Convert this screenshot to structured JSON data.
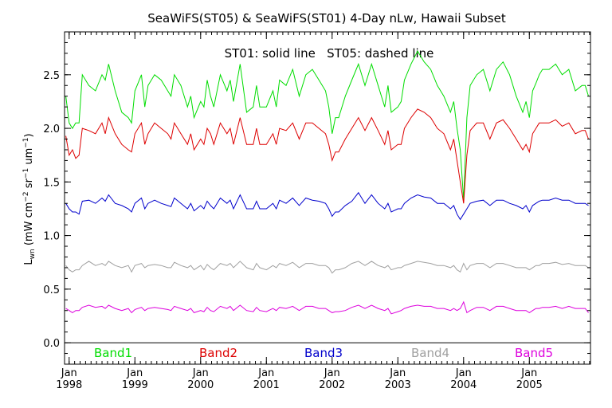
{
  "chart_data": {
    "type": "line",
    "title": "SeaWiFS(ST05) & SeaWiFS(ST01) 4-Day nLw, Hawaii Subset",
    "annotation": "ST01: solid line   ST05: dashed line",
    "ylabel": {
      "main": "L",
      "sub": "wn",
      "units_open": " (mW cm",
      "exp1": "−2",
      "mid": " sr",
      "exp2": "−1",
      "mid2": " um",
      "exp3": "−1",
      "close": ")"
    },
    "ylim": [
      -0.2,
      2.9
    ],
    "xlim": [
      1997.93,
      2005.93
    ],
    "yticks": [
      0.0,
      0.5,
      1.0,
      1.5,
      2.0,
      2.5
    ],
    "ytick_labels": [
      "0.0",
      "0.5",
      "1.0",
      "1.5",
      "2.0",
      "2.5"
    ],
    "xticks": [
      1998,
      1999,
      2000,
      2001,
      2002,
      2003,
      2004,
      2005
    ],
    "xtick_month": "Jan",
    "xtick_years": [
      "1998",
      "1999",
      "2000",
      "2001",
      "2002",
      "2003",
      "2004",
      "2005"
    ],
    "grid": false,
    "zero_line": true,
    "legend_placement": "bottom",
    "colors": {
      "Band1": "#00dd00",
      "Band2": "#dd0000",
      "Band3": "#0000cc",
      "Band4": "#a0a0a0",
      "Band5": "#dd00dd"
    },
    "series": [
      {
        "name": "Band1",
        "x": [
          1997.95,
          1998.0,
          1998.05,
          1998.1,
          1998.15,
          1998.2,
          1998.3,
          1998.4,
          1998.5,
          1998.55,
          1998.6,
          1998.7,
          1998.8,
          1998.9,
          1998.95,
          1999.0,
          1999.1,
          1999.15,
          1999.2,
          1999.3,
          1999.4,
          1999.5,
          1999.55,
          1999.6,
          1999.7,
          1999.8,
          1999.85,
          1999.9,
          2000.0,
          2000.05,
          2000.1,
          2000.15,
          2000.2,
          2000.3,
          2000.4,
          2000.45,
          2000.5,
          2000.6,
          2000.7,
          2000.8,
          2000.85,
          2000.9,
          2001.0,
          2001.1,
          2001.15,
          2001.2,
          2001.3,
          2001.4,
          2001.5,
          2001.6,
          2001.7,
          2001.8,
          2001.9,
          2001.95,
          2002.0,
          2002.05,
          2002.1,
          2002.2,
          2002.3,
          2002.4,
          2002.5,
          2002.6,
          2002.7,
          2002.8,
          2002.85,
          2002.9,
          2003.0,
          2003.05,
          2003.1,
          2003.2,
          2003.3,
          2003.4,
          2003.5,
          2003.6,
          2003.7,
          2003.8,
          2003.85,
          2003.9,
          2003.95,
          2004.0,
          2004.05,
          2004.1,
          2004.2,
          2004.3,
          2004.4,
          2004.5,
          2004.6,
          2004.7,
          2004.8,
          2004.9,
          2004.95,
          2005.0,
          2005.05,
          2005.1,
          2005.15,
          2005.2,
          2005.3,
          2005.4,
          2005.5,
          2005.6,
          2005.7,
          2005.8,
          2005.85,
          2005.9
        ],
        "values": [
          2.3,
          2.05,
          2.0,
          2.05,
          2.05,
          2.5,
          2.4,
          2.35,
          2.5,
          2.45,
          2.6,
          2.35,
          2.15,
          2.1,
          2.05,
          2.35,
          2.5,
          2.2,
          2.4,
          2.5,
          2.45,
          2.35,
          2.3,
          2.5,
          2.4,
          2.2,
          2.3,
          2.1,
          2.25,
          2.2,
          2.45,
          2.3,
          2.2,
          2.5,
          2.35,
          2.45,
          2.25,
          2.6,
          2.15,
          2.2,
          2.4,
          2.2,
          2.2,
          2.35,
          2.2,
          2.45,
          2.4,
          2.55,
          2.3,
          2.5,
          2.55,
          2.45,
          2.35,
          2.2,
          1.95,
          2.1,
          2.1,
          2.3,
          2.45,
          2.6,
          2.4,
          2.6,
          2.4,
          2.2,
          2.4,
          2.15,
          2.2,
          2.25,
          2.45,
          2.6,
          2.72,
          2.62,
          2.55,
          2.4,
          2.3,
          2.15,
          2.25,
          2.0,
          1.8,
          1.33,
          2.1,
          2.4,
          2.5,
          2.55,
          2.35,
          2.55,
          2.62,
          2.5,
          2.3,
          2.15,
          2.25,
          2.1,
          2.35,
          2.42,
          2.5,
          2.55,
          2.55,
          2.6,
          2.5,
          2.55,
          2.35,
          2.4,
          2.4,
          2.3
        ]
      },
      {
        "name": "Band2",
        "x": [
          1997.95,
          1998.0,
          1998.05,
          1998.1,
          1998.15,
          1998.2,
          1998.3,
          1998.4,
          1998.5,
          1998.55,
          1998.6,
          1998.7,
          1998.8,
          1998.9,
          1998.95,
          1999.0,
          1999.1,
          1999.15,
          1999.2,
          1999.3,
          1999.4,
          1999.5,
          1999.55,
          1999.6,
          1999.7,
          1999.8,
          1999.85,
          1999.9,
          2000.0,
          2000.05,
          2000.1,
          2000.15,
          2000.2,
          2000.3,
          2000.4,
          2000.45,
          2000.5,
          2000.6,
          2000.7,
          2000.8,
          2000.85,
          2000.9,
          2001.0,
          2001.1,
          2001.15,
          2001.2,
          2001.3,
          2001.4,
          2001.5,
          2001.6,
          2001.7,
          2001.8,
          2001.9,
          2001.95,
          2002.0,
          2002.05,
          2002.1,
          2002.2,
          2002.3,
          2002.4,
          2002.5,
          2002.6,
          2002.7,
          2002.8,
          2002.85,
          2002.9,
          2003.0,
          2003.05,
          2003.1,
          2003.2,
          2003.3,
          2003.4,
          2003.5,
          2003.6,
          2003.7,
          2003.8,
          2003.85,
          2003.9,
          2003.95,
          2004.0,
          2004.05,
          2004.1,
          2004.2,
          2004.3,
          2004.4,
          2004.5,
          2004.6,
          2004.7,
          2004.8,
          2004.9,
          2004.95,
          2005.0,
          2005.05,
          2005.1,
          2005.15,
          2005.2,
          2005.3,
          2005.4,
          2005.5,
          2005.6,
          2005.7,
          2005.8,
          2005.85,
          2005.9
        ],
        "values": [
          1.93,
          1.75,
          1.8,
          1.72,
          1.75,
          2.0,
          1.98,
          1.95,
          2.05,
          1.95,
          2.1,
          1.95,
          1.85,
          1.8,
          1.78,
          1.95,
          2.05,
          1.85,
          1.95,
          2.05,
          2.0,
          1.95,
          1.9,
          2.05,
          1.95,
          1.85,
          1.95,
          1.8,
          1.9,
          1.85,
          2.0,
          1.95,
          1.85,
          2.05,
          1.95,
          2.0,
          1.85,
          2.1,
          1.85,
          1.85,
          2.0,
          1.85,
          1.85,
          1.95,
          1.85,
          2.0,
          1.98,
          2.05,
          1.9,
          2.05,
          2.05,
          2.0,
          1.95,
          1.85,
          1.7,
          1.78,
          1.78,
          1.9,
          2.0,
          2.1,
          1.98,
          2.1,
          1.98,
          1.85,
          1.98,
          1.8,
          1.85,
          1.85,
          2.0,
          2.1,
          2.18,
          2.15,
          2.1,
          2.0,
          1.95,
          1.8,
          1.9,
          1.7,
          1.5,
          1.3,
          1.75,
          1.98,
          2.05,
          2.05,
          1.9,
          2.05,
          2.08,
          2.0,
          1.9,
          1.8,
          1.85,
          1.78,
          1.95,
          2.0,
          2.05,
          2.05,
          2.05,
          2.08,
          2.02,
          2.05,
          1.95,
          1.98,
          1.98,
          1.9
        ]
      },
      {
        "name": "Band3",
        "x": [
          1997.95,
          1998.0,
          1998.05,
          1998.1,
          1998.15,
          1998.2,
          1998.3,
          1998.4,
          1998.5,
          1998.55,
          1998.6,
          1998.7,
          1998.8,
          1998.9,
          1998.95,
          1999.0,
          1999.1,
          1999.15,
          1999.2,
          1999.3,
          1999.4,
          1999.5,
          1999.55,
          1999.6,
          1999.7,
          1999.8,
          1999.85,
          1999.9,
          2000.0,
          2000.05,
          2000.1,
          2000.15,
          2000.2,
          2000.3,
          2000.4,
          2000.45,
          2000.5,
          2000.6,
          2000.7,
          2000.8,
          2000.85,
          2000.9,
          2001.0,
          2001.1,
          2001.15,
          2001.2,
          2001.3,
          2001.4,
          2001.5,
          2001.6,
          2001.7,
          2001.8,
          2001.9,
          2001.95,
          2002.0,
          2002.05,
          2002.1,
          2002.2,
          2002.3,
          2002.4,
          2002.5,
          2002.6,
          2002.7,
          2002.8,
          2002.85,
          2002.9,
          2003.0,
          2003.05,
          2003.1,
          2003.2,
          2003.3,
          2003.4,
          2003.5,
          2003.6,
          2003.7,
          2003.8,
          2003.85,
          2003.9,
          2003.95,
          2004.0,
          2004.05,
          2004.1,
          2004.2,
          2004.3,
          2004.4,
          2004.5,
          2004.6,
          2004.7,
          2004.8,
          2004.9,
          2004.95,
          2005.0,
          2005.05,
          2005.1,
          2005.15,
          2005.2,
          2005.3,
          2005.4,
          2005.5,
          2005.6,
          2005.7,
          2005.8,
          2005.85,
          2005.9
        ],
        "values": [
          1.3,
          1.25,
          1.22,
          1.22,
          1.2,
          1.32,
          1.33,
          1.3,
          1.35,
          1.32,
          1.38,
          1.3,
          1.28,
          1.25,
          1.22,
          1.3,
          1.35,
          1.25,
          1.3,
          1.33,
          1.3,
          1.28,
          1.27,
          1.35,
          1.3,
          1.25,
          1.3,
          1.23,
          1.28,
          1.25,
          1.32,
          1.28,
          1.25,
          1.35,
          1.3,
          1.33,
          1.25,
          1.38,
          1.25,
          1.25,
          1.32,
          1.25,
          1.25,
          1.3,
          1.25,
          1.33,
          1.3,
          1.35,
          1.28,
          1.35,
          1.33,
          1.32,
          1.3,
          1.25,
          1.18,
          1.22,
          1.22,
          1.28,
          1.32,
          1.4,
          1.3,
          1.38,
          1.3,
          1.25,
          1.3,
          1.22,
          1.25,
          1.25,
          1.3,
          1.35,
          1.38,
          1.36,
          1.35,
          1.3,
          1.3,
          1.25,
          1.28,
          1.2,
          1.15,
          1.2,
          1.25,
          1.3,
          1.32,
          1.33,
          1.28,
          1.33,
          1.33,
          1.3,
          1.28,
          1.25,
          1.28,
          1.22,
          1.28,
          1.3,
          1.32,
          1.33,
          1.33,
          1.35,
          1.33,
          1.33,
          1.3,
          1.3,
          1.3,
          1.28
        ]
      },
      {
        "name": "Band4",
        "x": [
          1997.95,
          1998.0,
          1998.05,
          1998.1,
          1998.15,
          1998.2,
          1998.3,
          1998.4,
          1998.5,
          1998.55,
          1998.6,
          1998.7,
          1998.8,
          1998.9,
          1998.95,
          1999.0,
          1999.1,
          1999.15,
          1999.2,
          1999.3,
          1999.4,
          1999.5,
          1999.55,
          1999.6,
          1999.7,
          1999.8,
          1999.85,
          1999.9,
          2000.0,
          2000.05,
          2000.1,
          2000.15,
          2000.2,
          2000.3,
          2000.4,
          2000.45,
          2000.5,
          2000.6,
          2000.7,
          2000.8,
          2000.85,
          2000.9,
          2001.0,
          2001.1,
          2001.15,
          2001.2,
          2001.3,
          2001.4,
          2001.5,
          2001.6,
          2001.7,
          2001.8,
          2001.9,
          2001.95,
          2002.0,
          2002.05,
          2002.1,
          2002.2,
          2002.3,
          2002.4,
          2002.5,
          2002.6,
          2002.7,
          2002.8,
          2002.85,
          2002.9,
          2003.0,
          2003.05,
          2003.1,
          2003.2,
          2003.3,
          2003.4,
          2003.5,
          2003.6,
          2003.7,
          2003.8,
          2003.85,
          2003.9,
          2003.95,
          2004.0,
          2004.05,
          2004.1,
          2004.2,
          2004.3,
          2004.4,
          2004.5,
          2004.6,
          2004.7,
          2004.8,
          2004.9,
          2004.95,
          2005.0,
          2005.05,
          2005.1,
          2005.15,
          2005.2,
          2005.3,
          2005.4,
          2005.5,
          2005.6,
          2005.7,
          2005.8,
          2005.85,
          2005.9
        ],
        "values": [
          0.72,
          0.68,
          0.66,
          0.68,
          0.68,
          0.72,
          0.76,
          0.72,
          0.74,
          0.72,
          0.76,
          0.72,
          0.7,
          0.72,
          0.66,
          0.72,
          0.74,
          0.7,
          0.72,
          0.73,
          0.72,
          0.7,
          0.7,
          0.75,
          0.72,
          0.7,
          0.72,
          0.68,
          0.72,
          0.68,
          0.73,
          0.7,
          0.68,
          0.74,
          0.72,
          0.74,
          0.7,
          0.76,
          0.7,
          0.68,
          0.74,
          0.7,
          0.68,
          0.72,
          0.7,
          0.74,
          0.72,
          0.75,
          0.7,
          0.74,
          0.74,
          0.72,
          0.72,
          0.7,
          0.65,
          0.68,
          0.68,
          0.7,
          0.74,
          0.76,
          0.72,
          0.76,
          0.72,
          0.7,
          0.72,
          0.68,
          0.7,
          0.7,
          0.72,
          0.74,
          0.76,
          0.75,
          0.74,
          0.72,
          0.72,
          0.7,
          0.72,
          0.68,
          0.66,
          0.74,
          0.68,
          0.72,
          0.74,
          0.74,
          0.7,
          0.74,
          0.74,
          0.72,
          0.7,
          0.7,
          0.7,
          0.68,
          0.7,
          0.72,
          0.72,
          0.74,
          0.74,
          0.75,
          0.73,
          0.74,
          0.72,
          0.72,
          0.72,
          0.7
        ]
      },
      {
        "name": "Band5",
        "x": [
          1997.95,
          1998.0,
          1998.05,
          1998.1,
          1998.15,
          1998.2,
          1998.3,
          1998.4,
          1998.5,
          1998.55,
          1998.6,
          1998.7,
          1998.8,
          1998.9,
          1998.95,
          1999.0,
          1999.1,
          1999.15,
          1999.2,
          1999.3,
          1999.4,
          1999.5,
          1999.55,
          1999.6,
          1999.7,
          1999.8,
          1999.85,
          1999.9,
          2000.0,
          2000.05,
          2000.1,
          2000.15,
          2000.2,
          2000.3,
          2000.4,
          2000.45,
          2000.5,
          2000.6,
          2000.7,
          2000.8,
          2000.85,
          2000.9,
          2001.0,
          2001.1,
          2001.15,
          2001.2,
          2001.3,
          2001.4,
          2001.5,
          2001.6,
          2001.7,
          2001.8,
          2001.9,
          2001.95,
          2002.0,
          2002.05,
          2002.1,
          2002.2,
          2002.3,
          2002.4,
          2002.5,
          2002.6,
          2002.7,
          2002.8,
          2002.85,
          2002.9,
          2003.0,
          2003.05,
          2003.1,
          2003.2,
          2003.3,
          2003.4,
          2003.5,
          2003.6,
          2003.7,
          2003.8,
          2003.85,
          2003.9,
          2003.95,
          2004.0,
          2004.05,
          2004.1,
          2004.2,
          2004.3,
          2004.4,
          2004.5,
          2004.6,
          2004.7,
          2004.8,
          2004.9,
          2004.95,
          2005.0,
          2005.05,
          2005.1,
          2005.15,
          2005.2,
          2005.3,
          2005.4,
          2005.5,
          2005.6,
          2005.7,
          2005.8,
          2005.85,
          2005.9
        ],
        "values": [
          0.32,
          0.3,
          0.28,
          0.3,
          0.3,
          0.33,
          0.35,
          0.33,
          0.34,
          0.32,
          0.35,
          0.32,
          0.3,
          0.32,
          0.28,
          0.31,
          0.33,
          0.3,
          0.32,
          0.33,
          0.32,
          0.31,
          0.3,
          0.34,
          0.32,
          0.3,
          0.32,
          0.28,
          0.3,
          0.29,
          0.33,
          0.3,
          0.29,
          0.34,
          0.32,
          0.34,
          0.3,
          0.35,
          0.3,
          0.29,
          0.33,
          0.3,
          0.29,
          0.32,
          0.3,
          0.33,
          0.32,
          0.34,
          0.3,
          0.34,
          0.34,
          0.32,
          0.32,
          0.3,
          0.28,
          0.29,
          0.29,
          0.3,
          0.33,
          0.35,
          0.32,
          0.35,
          0.32,
          0.3,
          0.32,
          0.27,
          0.29,
          0.3,
          0.32,
          0.34,
          0.35,
          0.34,
          0.34,
          0.32,
          0.32,
          0.3,
          0.32,
          0.3,
          0.32,
          0.38,
          0.28,
          0.3,
          0.33,
          0.33,
          0.3,
          0.34,
          0.34,
          0.32,
          0.3,
          0.3,
          0.3,
          0.28,
          0.3,
          0.32,
          0.32,
          0.33,
          0.33,
          0.34,
          0.32,
          0.34,
          0.32,
          0.32,
          0.32,
          0.28
        ]
      }
    ]
  }
}
